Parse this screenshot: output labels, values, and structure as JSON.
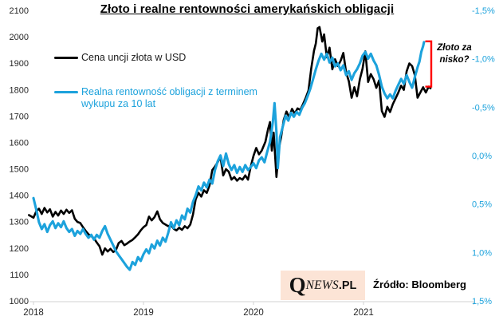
{
  "title": "Złoto i realne rentowności amerykańskich obligacji",
  "legend": {
    "gold_label": "Cena uncji złota w USD",
    "yield_label": "Realna rentowność obligacji z terminem wykupu za 10 lat"
  },
  "annotation": {
    "text": "Złoto za nisko?"
  },
  "footer": {
    "logo_q": "Q",
    "logo_news": "NEWS",
    "logo_pl": ".PL",
    "source": "Źródło: Bloomberg"
  },
  "colors": {
    "gold_line": "#000000",
    "yield_line": "#1CA2DC",
    "bracket": "#FF0000",
    "right_axis_text": "#1CA2DC",
    "axis_line": "#D9D9D9",
    "logo_bg": "#FCE4D6"
  },
  "chart_data": {
    "type": "line",
    "title": "Złoto i realne rentowności amerykańskich obligacji",
    "x_unit": "months since January 2018",
    "x_tick_labels": [
      "2018",
      "2019",
      "2020",
      "2021"
    ],
    "grid": false,
    "legend_position": "top-left inside plot",
    "left_axis": {
      "title": "Gold price (USD/oz)",
      "min": 1000,
      "max": 2100,
      "step": 100,
      "tick_labels": [
        "2100",
        "2000",
        "1900",
        "1800",
        "1700",
        "1600",
        "1500",
        "1400",
        "1300",
        "1200",
        "1100",
        "1000"
      ]
    },
    "right_axis": {
      "title": "Real 10Y yield (%)",
      "min": -1.5,
      "max": 1.5,
      "step": 0.5,
      "inverted": true,
      "tick_labels": [
        "-1,5%",
        "-1,0%",
        "-0,5%",
        "0,0%",
        "0,5%",
        "1,0%",
        "1,5%"
      ]
    },
    "series": [
      {
        "name": "Cena uncji złota w USD",
        "axis": "left",
        "color": "#000000",
        "points": [
          [
            -0.5,
            1328
          ],
          [
            0,
            1318
          ],
          [
            0.3,
            1342
          ],
          [
            0.6,
            1352
          ],
          [
            0.9,
            1332
          ],
          [
            1.2,
            1355
          ],
          [
            1.5,
            1338
          ],
          [
            1.8,
            1350
          ],
          [
            2.1,
            1322
          ],
          [
            2.4,
            1340
          ],
          [
            2.7,
            1326
          ],
          [
            3,
            1345
          ],
          [
            3.3,
            1332
          ],
          [
            3.6,
            1348
          ],
          [
            3.9,
            1336
          ],
          [
            4.2,
            1346
          ],
          [
            4.5,
            1314
          ],
          [
            4.8,
            1302
          ],
          [
            5.1,
            1298
          ],
          [
            5.4,
            1282
          ],
          [
            5.7,
            1268
          ],
          [
            6,
            1255
          ],
          [
            6.3,
            1248
          ],
          [
            6.6,
            1240
          ],
          [
            6.9,
            1224
          ],
          [
            7.2,
            1210
          ],
          [
            7.5,
            1178
          ],
          [
            7.8,
            1202
          ],
          [
            8.1,
            1190
          ],
          [
            8.4,
            1200
          ],
          [
            8.7,
            1188
          ],
          [
            9,
            1196
          ],
          [
            9.3,
            1222
          ],
          [
            9.6,
            1230
          ],
          [
            9.9,
            1214
          ],
          [
            10.2,
            1220
          ],
          [
            10.5,
            1228
          ],
          [
            10.8,
            1234
          ],
          [
            11.1,
            1244
          ],
          [
            11.4,
            1255
          ],
          [
            11.7,
            1270
          ],
          [
            12,
            1282
          ],
          [
            12.3,
            1290
          ],
          [
            12.6,
            1322
          ],
          [
            12.9,
            1308
          ],
          [
            13.2,
            1320
          ],
          [
            13.5,
            1342
          ],
          [
            13.8,
            1312
          ],
          [
            14.1,
            1298
          ],
          [
            14.4,
            1292
          ],
          [
            14.7,
            1286
          ],
          [
            15,
            1290
          ],
          [
            15.3,
            1276
          ],
          [
            15.6,
            1270
          ],
          [
            15.9,
            1280
          ],
          [
            16.2,
            1272
          ],
          [
            16.5,
            1286
          ],
          [
            16.8,
            1278
          ],
          [
            17.1,
            1292
          ],
          [
            17.4,
            1330
          ],
          [
            17.7,
            1388
          ],
          [
            18,
            1412
          ],
          [
            18.3,
            1398
          ],
          [
            18.6,
            1422
          ],
          [
            18.9,
            1412
          ],
          [
            19.2,
            1440
          ],
          [
            19.5,
            1498
          ],
          [
            19.8,
            1512
          ],
          [
            20.1,
            1528
          ],
          [
            20.4,
            1548
          ],
          [
            20.7,
            1478
          ],
          [
            21,
            1502
          ],
          [
            21.3,
            1492
          ],
          [
            21.6,
            1462
          ],
          [
            21.9,
            1472
          ],
          [
            22.2,
            1458
          ],
          [
            22.5,
            1468
          ],
          [
            22.8,
            1462
          ],
          [
            23.1,
            1478
          ],
          [
            23.4,
            1462
          ],
          [
            23.7,
            1512
          ],
          [
            24,
            1552
          ],
          [
            24.3,
            1582
          ],
          [
            24.6,
            1558
          ],
          [
            24.9,
            1572
          ],
          [
            25.3,
            1605
          ],
          [
            25.6,
            1655
          ],
          [
            25.8,
            1680
          ],
          [
            26,
            1572
          ],
          [
            26.2,
            1640
          ],
          [
            26.5,
            1472
          ],
          [
            26.8,
            1585
          ],
          [
            27,
            1620
          ],
          [
            27.3,
            1688
          ],
          [
            27.6,
            1720
          ],
          [
            27.9,
            1698
          ],
          [
            28.2,
            1730
          ],
          [
            28.5,
            1712
          ],
          [
            28.8,
            1732
          ],
          [
            29.1,
            1726
          ],
          [
            29.4,
            1748
          ],
          [
            29.7,
            1772
          ],
          [
            30,
            1800
          ],
          [
            30.3,
            1882
          ],
          [
            30.6,
            1950
          ],
          [
            30.8,
            1978
          ],
          [
            31,
            2035
          ],
          [
            31.2,
            2040
          ],
          [
            31.5,
            1985
          ],
          [
            31.7,
            2012
          ],
          [
            32,
            1925
          ],
          [
            32.3,
            1962
          ],
          [
            32.6,
            1880
          ],
          [
            32.9,
            1918
          ],
          [
            33.2,
            1892
          ],
          [
            33.5,
            1912
          ],
          [
            33.8,
            1942
          ],
          [
            34.1,
            1868
          ],
          [
            34.4,
            1835
          ],
          [
            34.7,
            1772
          ],
          [
            35,
            1812
          ],
          [
            35.3,
            1778
          ],
          [
            35.6,
            1842
          ],
          [
            35.9,
            1882
          ],
          [
            36.2,
            1948
          ],
          [
            36.5,
            1832
          ],
          [
            36.8,
            1862
          ],
          [
            37.1,
            1842
          ],
          [
            37.4,
            1810
          ],
          [
            37.7,
            1838
          ],
          [
            38,
            1722
          ],
          [
            38.3,
            1700
          ],
          [
            38.6,
            1738
          ],
          [
            38.9,
            1718
          ],
          [
            39.2,
            1748
          ],
          [
            39.5,
            1770
          ],
          [
            39.8,
            1792
          ],
          [
            40.1,
            1818
          ],
          [
            40.4,
            1802
          ],
          [
            40.7,
            1872
          ],
          [
            41,
            1902
          ],
          [
            41.3,
            1892
          ],
          [
            41.6,
            1858
          ],
          [
            41.9,
            1772
          ],
          [
            42.2,
            1792
          ],
          [
            42.5,
            1812
          ],
          [
            42.8,
            1792
          ],
          [
            43.1,
            1814
          ],
          [
            43.3,
            1808
          ]
        ]
      },
      {
        "name": "Realna rentowność obligacji z terminem wykupu za 10 lat",
        "axis": "right",
        "color": "#1CA2DC",
        "points": [
          [
            0,
            0.43
          ],
          [
            0.3,
            0.55
          ],
          [
            0.6,
            0.68
          ],
          [
            0.9,
            0.75
          ],
          [
            1.2,
            0.7
          ],
          [
            1.5,
            0.78
          ],
          [
            1.8,
            0.71
          ],
          [
            2.1,
            0.67
          ],
          [
            2.4,
            0.74
          ],
          [
            2.7,
            0.69
          ],
          [
            3,
            0.73
          ],
          [
            3.3,
            0.67
          ],
          [
            3.6,
            0.74
          ],
          [
            3.9,
            0.78
          ],
          [
            4.2,
            0.75
          ],
          [
            4.5,
            0.82
          ],
          [
            4.8,
            0.77
          ],
          [
            5.1,
            0.8
          ],
          [
            5.4,
            0.75
          ],
          [
            5.7,
            0.8
          ],
          [
            6,
            0.84
          ],
          [
            6.3,
            0.81
          ],
          [
            6.6,
            0.86
          ],
          [
            6.9,
            0.81
          ],
          [
            7.2,
            0.84
          ],
          [
            7.5,
            0.77
          ],
          [
            7.8,
            0.72
          ],
          [
            8.1,
            0.8
          ],
          [
            8.4,
            0.86
          ],
          [
            8.7,
            0.92
          ],
          [
            9,
            0.98
          ],
          [
            9.3,
            1.02
          ],
          [
            9.6,
            1.06
          ],
          [
            9.9,
            1.1
          ],
          [
            10.2,
            1.14
          ],
          [
            10.5,
            1.17
          ],
          [
            10.8,
            1.09
          ],
          [
            11.1,
            1.12
          ],
          [
            11.4,
            1.04
          ],
          [
            11.7,
            1.08
          ],
          [
            12,
            1.01
          ],
          [
            12.3,
            0.96
          ],
          [
            12.6,
            1.0
          ],
          [
            12.9,
            0.91
          ],
          [
            13.2,
            0.95
          ],
          [
            13.5,
            0.87
          ],
          [
            13.8,
            0.92
          ],
          [
            14.1,
            0.84
          ],
          [
            14.4,
            0.88
          ],
          [
            14.7,
            0.79
          ],
          [
            15,
            0.68
          ],
          [
            15.3,
            0.74
          ],
          [
            15.6,
            0.66
          ],
          [
            15.9,
            0.71
          ],
          [
            16.2,
            0.61
          ],
          [
            16.5,
            0.65
          ],
          [
            16.8,
            0.54
          ],
          [
            17.1,
            0.58
          ],
          [
            17.4,
            0.47
          ],
          [
            17.7,
            0.4
          ],
          [
            18,
            0.31
          ],
          [
            18.3,
            0.35
          ],
          [
            18.6,
            0.27
          ],
          [
            18.9,
            0.32
          ],
          [
            19.2,
            0.24
          ],
          [
            19.5,
            0.28
          ],
          [
            19.8,
            0.14
          ],
          [
            20.1,
            0.05
          ],
          [
            20.4,
            -0.01
          ],
          [
            20.7,
            0.1
          ],
          [
            21,
            -0.03
          ],
          [
            21.3,
            0.08
          ],
          [
            21.6,
            0.14
          ],
          [
            21.9,
            0.09
          ],
          [
            22.2,
            0.17
          ],
          [
            22.5,
            0.11
          ],
          [
            22.8,
            0.16
          ],
          [
            23.1,
            0.09
          ],
          [
            23.4,
            0.14
          ],
          [
            23.7,
            0.11
          ],
          [
            24,
            0.07
          ],
          [
            24.3,
            0.12
          ],
          [
            24.6,
            0.04
          ],
          [
            24.9,
            0.01
          ],
          [
            25.2,
            0.06
          ],
          [
            25.5,
            -0.05
          ],
          [
            25.8,
            -0.15
          ],
          [
            26.1,
            -0.35
          ],
          [
            26.3,
            -0.55
          ],
          [
            26.5,
            -0.25
          ],
          [
            26.65,
            0.12
          ],
          [
            26.9,
            -0.2
          ],
          [
            27.2,
            -0.31
          ],
          [
            27.5,
            -0.42
          ],
          [
            27.8,
            -0.37
          ],
          [
            28.1,
            -0.45
          ],
          [
            28.4,
            -0.41
          ],
          [
            28.7,
            -0.46
          ],
          [
            29,
            -0.43
          ],
          [
            29.3,
            -0.5
          ],
          [
            29.6,
            -0.55
          ],
          [
            29.9,
            -0.62
          ],
          [
            30.2,
            -0.7
          ],
          [
            30.5,
            -0.8
          ],
          [
            30.8,
            -0.9
          ],
          [
            31.1,
            -0.99
          ],
          [
            31.4,
            -1.06
          ],
          [
            31.7,
            -1.0
          ],
          [
            32,
            -1.06
          ],
          [
            32.3,
            -0.97
          ],
          [
            32.6,
            -1.02
          ],
          [
            32.9,
            -0.93
          ],
          [
            33.2,
            -0.96
          ],
          [
            33.5,
            -0.89
          ],
          [
            33.8,
            -0.94
          ],
          [
            34.1,
            -0.84
          ],
          [
            34.4,
            -0.88
          ],
          [
            34.7,
            -0.79
          ],
          [
            35,
            -0.86
          ],
          [
            35.3,
            -0.9
          ],
          [
            35.6,
            -0.96
          ],
          [
            35.9,
            -1.04
          ],
          [
            36.2,
            -1.08
          ],
          [
            36.5,
            -1.01
          ],
          [
            36.8,
            -1.06
          ],
          [
            37.1,
            -0.99
          ],
          [
            37.4,
            -0.94
          ],
          [
            37.7,
            -0.84
          ],
          [
            38,
            -0.72
          ],
          [
            38.3,
            -0.65
          ],
          [
            38.6,
            -0.6
          ],
          [
            38.9,
            -0.64
          ],
          [
            39.2,
            -0.6
          ],
          [
            39.5,
            -0.68
          ],
          [
            39.8,
            -0.74
          ],
          [
            40.1,
            -0.8
          ],
          [
            40.4,
            -0.75
          ],
          [
            40.7,
            -0.84
          ],
          [
            41,
            -0.77
          ],
          [
            41.3,
            -0.71
          ],
          [
            41.6,
            -0.82
          ],
          [
            41.9,
            -0.92
          ],
          [
            42.1,
            -0.98
          ],
          [
            42.3,
            -1.08
          ],
          [
            42.5,
            -1.14
          ],
          [
            42.6,
            -1.18
          ]
        ]
      }
    ],
    "annotation": {
      "text": "Złoto za nisko?",
      "bracket_color": "#FF0000",
      "position": "right end of series"
    },
    "source": "Źródło: Bloomberg"
  }
}
